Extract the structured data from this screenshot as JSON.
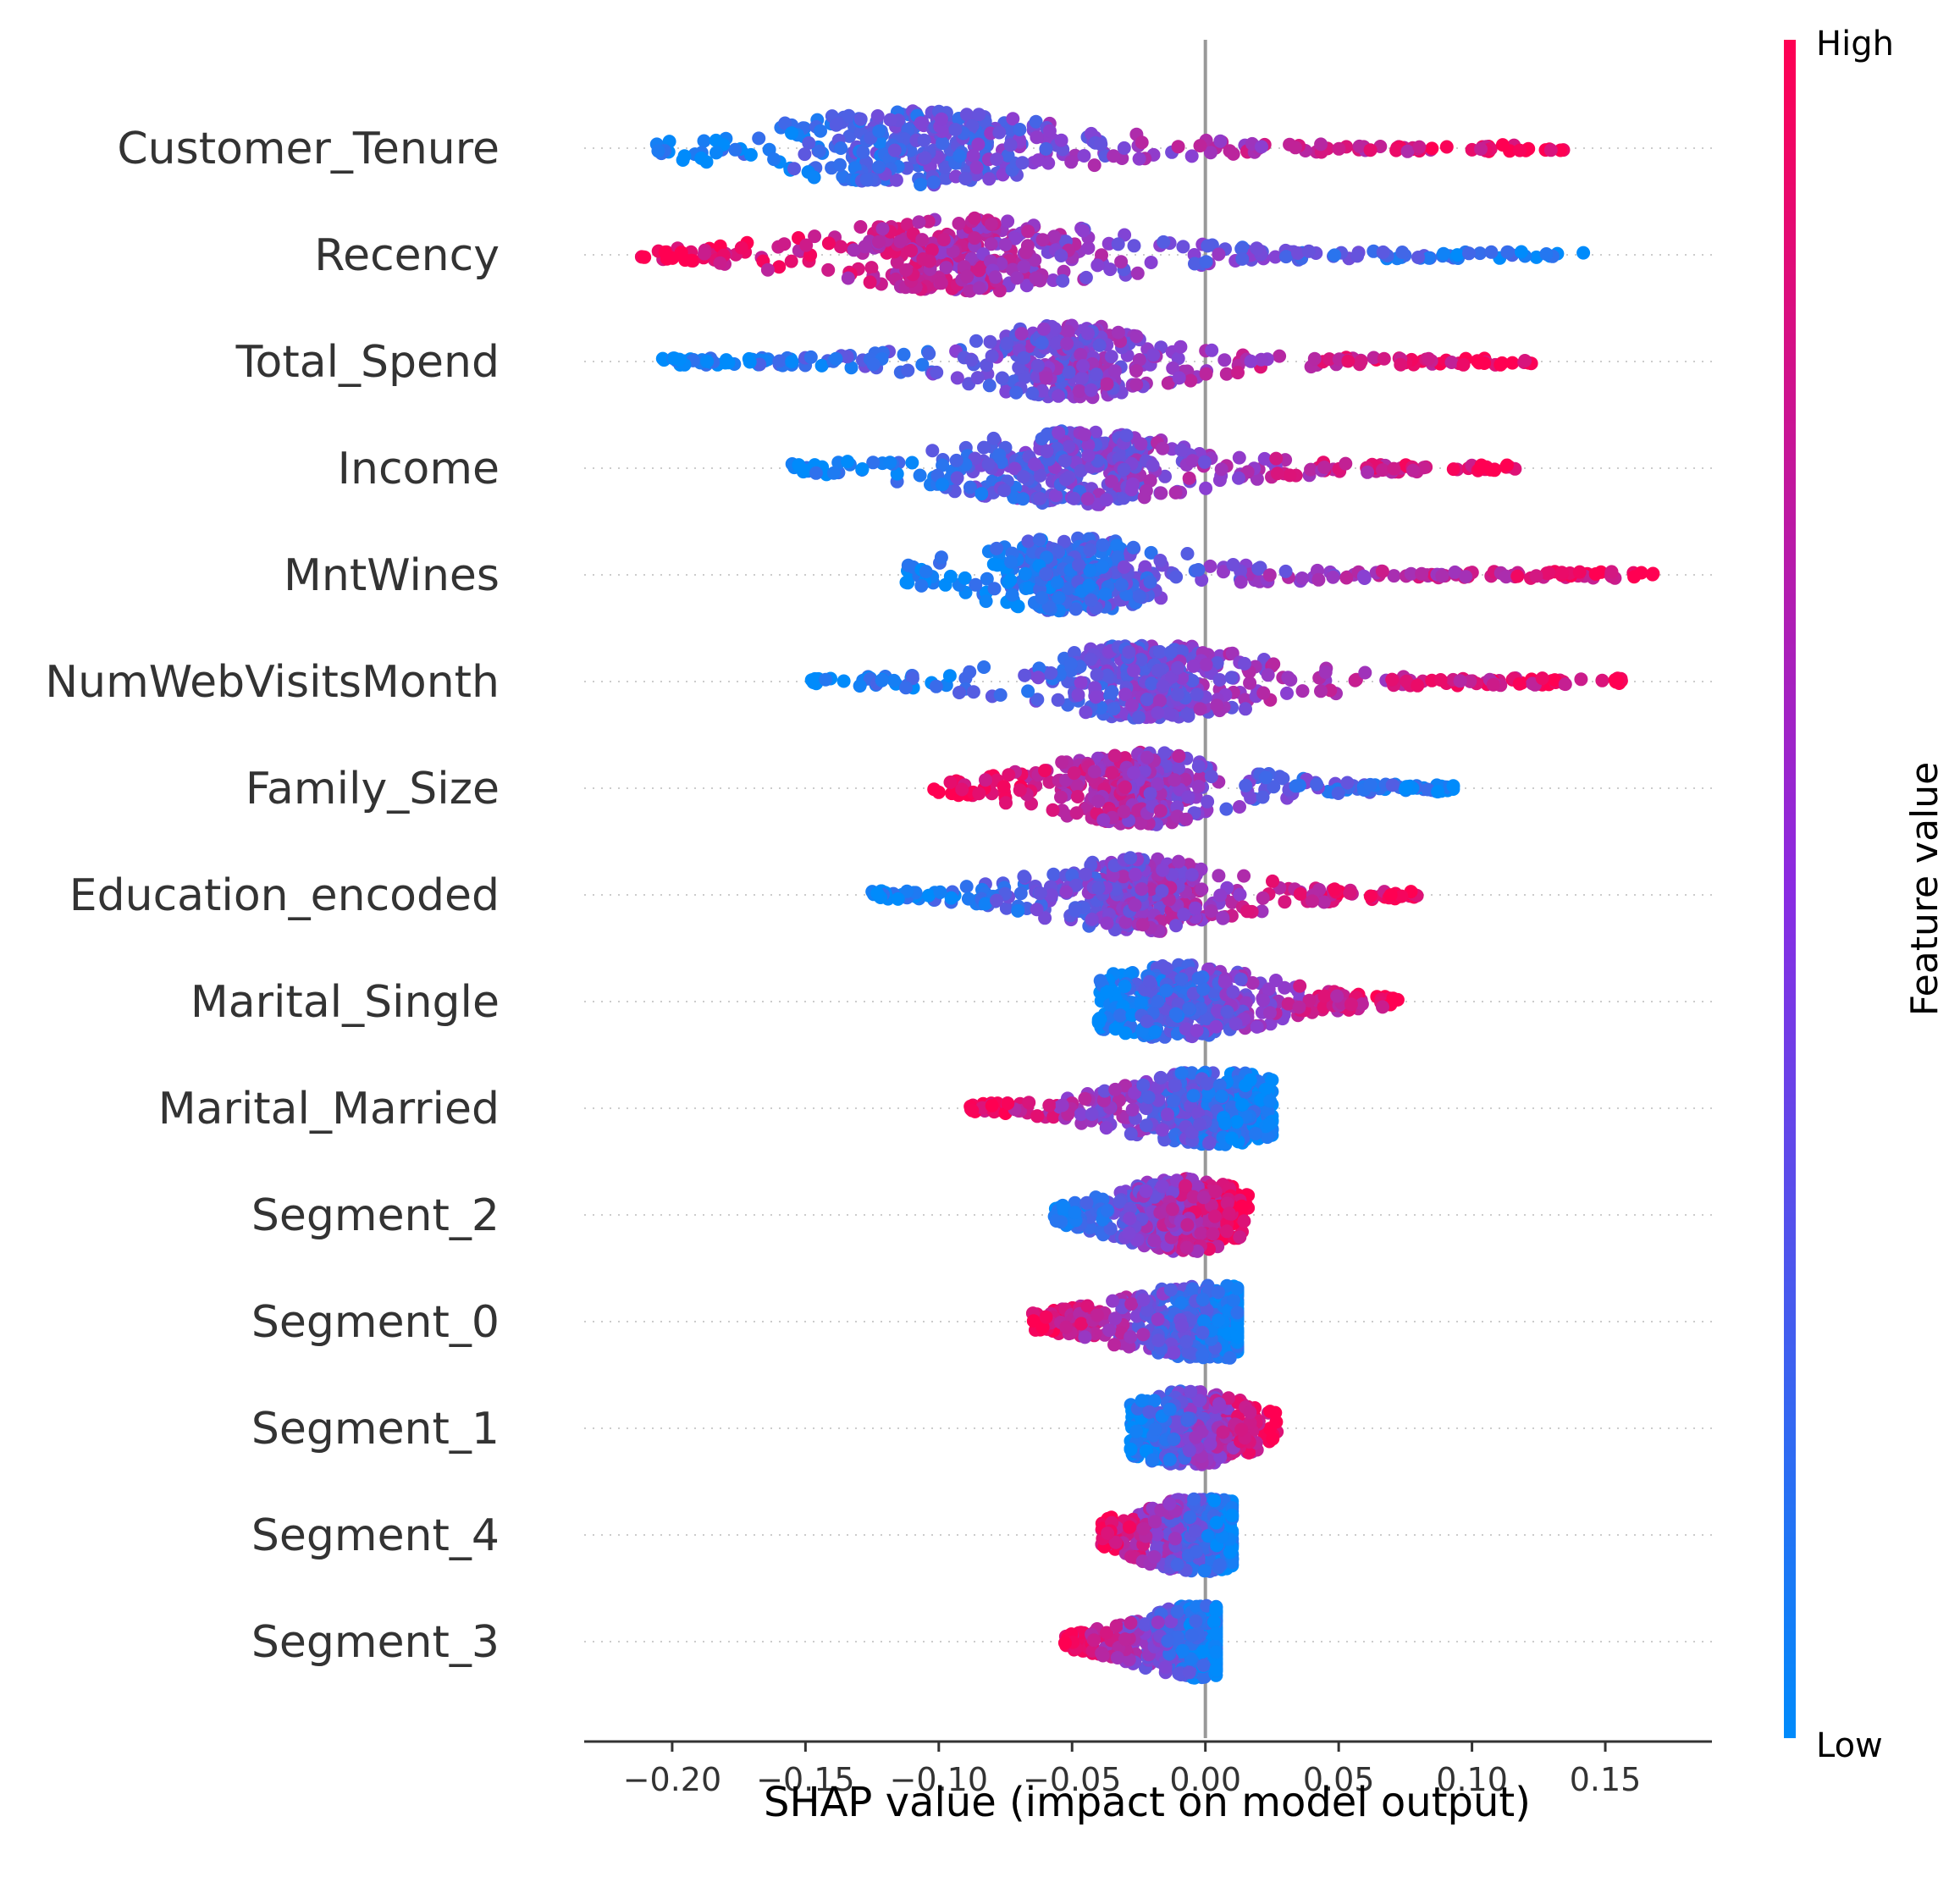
{
  "chart_data": {
    "type": "scatter",
    "xlabel": "SHAP value (impact on model output)",
    "xlim": [
      -0.233,
      0.19
    ],
    "x_ticks": [
      "−0.20",
      "−0.15",
      "−0.10",
      "−0.05",
      "0.00",
      "0.05",
      "0.10",
      "0.15"
    ],
    "x_tick_values": [
      -0.2,
      -0.15,
      -0.1,
      -0.05,
      0.0,
      0.05,
      0.1,
      0.15
    ],
    "colorbar": {
      "label": "Feature value",
      "high": "High",
      "low": "Low",
      "high_color": "#ff0052",
      "low_color": "#008bfb"
    },
    "features": [
      {
        "name": "Customer_Tenure",
        "min": -0.21,
        "max": 0.135,
        "pos_high": true,
        "width": 0.13,
        "center": -0.11
      },
      {
        "name": "Recency",
        "min": -0.213,
        "max": 0.143,
        "pos_high": false,
        "width": 0.12,
        "center": -0.09
      },
      {
        "name": "Total_Spend",
        "min": -0.205,
        "max": 0.125,
        "pos_high": true,
        "width": 0.09,
        "center": -0.05
      },
      {
        "name": "Income",
        "min": -0.155,
        "max": 0.117,
        "pos_high": true,
        "width": 0.1,
        "center": -0.05
      },
      {
        "name": "MntWines",
        "min": -0.113,
        "max": 0.17,
        "pos_high": true,
        "width": 0.09,
        "center": -0.05
      },
      {
        "name": "NumWebVisitsMonth",
        "min": -0.15,
        "max": 0.158,
        "pos_high": true,
        "width": 0.1,
        "center": -0.02
      },
      {
        "name": "Family_Size",
        "min": -0.103,
        "max": 0.097,
        "pos_high": false,
        "width": 0.08,
        "center": -0.025
      },
      {
        "name": "Education_encoded",
        "min": -0.125,
        "max": 0.08,
        "pos_high": true,
        "width": 0.08,
        "center": -0.025
      },
      {
        "name": "Marital_Single",
        "min": -0.04,
        "max": 0.073,
        "pos_high": true,
        "width": 0.08,
        "center": -0.012
      },
      {
        "name": "Marital_Married",
        "min": -0.089,
        "max": 0.025,
        "pos_high": false,
        "width": 0.08,
        "center": 0.003
      },
      {
        "name": "Segment_2",
        "min": -0.057,
        "max": 0.016,
        "pos_high": true,
        "width": 0.06,
        "center": -0.008
      },
      {
        "name": "Segment_0",
        "min": -0.066,
        "max": 0.012,
        "pos_high": false,
        "width": 0.08,
        "center": 0.001
      },
      {
        "name": "Segment_1",
        "min": -0.028,
        "max": 0.027,
        "pos_high": true,
        "width": 0.06,
        "center": -0.007
      },
      {
        "name": "Segment_4",
        "min": -0.039,
        "max": 0.01,
        "pos_high": false,
        "width": 0.06,
        "center": -0.002
      },
      {
        "name": "Segment_3",
        "min": -0.053,
        "max": 0.004,
        "pos_high": false,
        "width": 0.06,
        "center": 0.0
      }
    ]
  }
}
